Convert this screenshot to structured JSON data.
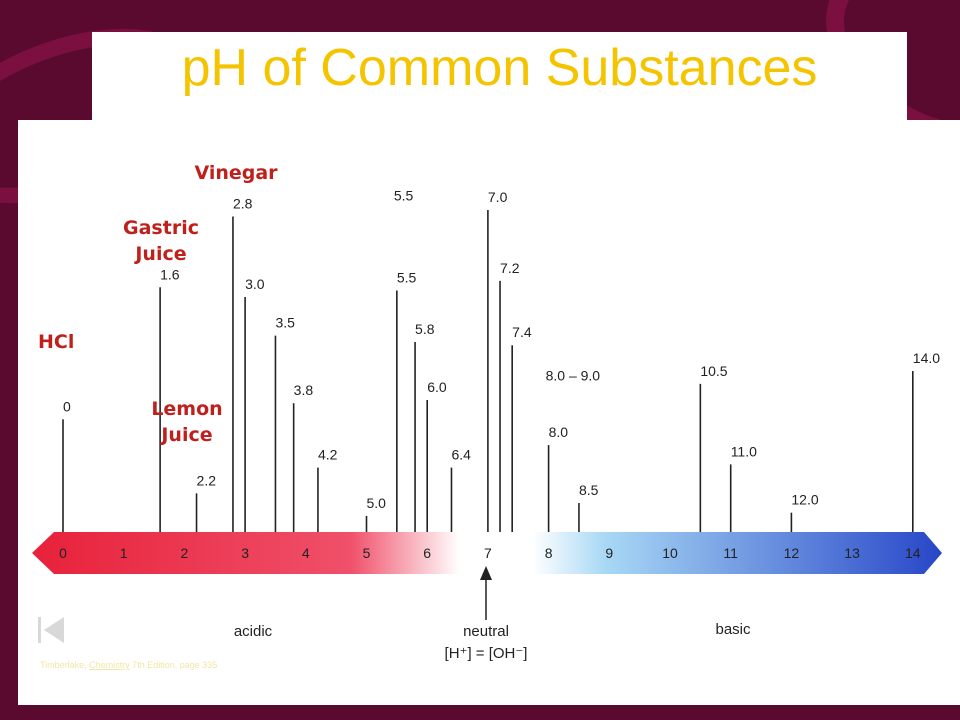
{
  "title": "pH of Common Substances",
  "colors": {
    "title": "#f5c400",
    "callout": "#c0201c",
    "background": "#5a0a2e"
  },
  "callouts": {
    "hcl": "HCl",
    "gastric": "Gastric\nJuice",
    "vinegar": "Vinegar",
    "lemon": "Lemon\nJuice"
  },
  "scale": {
    "ticks": [
      "0",
      "1",
      "2",
      "3",
      "4",
      "5",
      "6",
      "7",
      "8",
      "9",
      "10",
      "11",
      "12",
      "13",
      "14"
    ],
    "acidic": "acidic",
    "neutral": "neutral",
    "neutral_eq": "[H⁺] = [OH⁻]",
    "basic": "basic"
  },
  "markers": [
    {
      "ph": 0,
      "label": "0",
      "level": 0.35
    },
    {
      "ph": 1.6,
      "label": "1.6",
      "level": 0.76
    },
    {
      "ph": 2.2,
      "label": "2.2",
      "level": 0.12
    },
    {
      "ph": 2.8,
      "label": "2.8",
      "level": 0.98
    },
    {
      "ph": 3.0,
      "label": "3.0",
      "level": 0.73
    },
    {
      "ph": 3.5,
      "label": "3.5",
      "level": 0.61
    },
    {
      "ph": 3.8,
      "label": "3.8",
      "level": 0.4
    },
    {
      "ph": 4.2,
      "label": "4.2",
      "level": 0.2
    },
    {
      "ph": 5.0,
      "label": "5.0",
      "level": 0.05
    },
    {
      "ph": 5.5,
      "label": "5.5",
      "level": 0.75
    },
    {
      "ph": 5.8,
      "label": "5.8",
      "level": 0.59
    },
    {
      "ph": 6.0,
      "label": "6.0",
      "level": 0.41
    },
    {
      "ph": 6.4,
      "label": "6.4",
      "level": 0.2
    },
    {
      "ph": 7.0,
      "label": "7.0",
      "level": 1.0
    },
    {
      "ph": 7.2,
      "label": "7.2",
      "level": 0.78
    },
    {
      "ph": 7.4,
      "label": "7.4",
      "level": 0.58
    },
    {
      "ph": 8.0,
      "label": "8.0",
      "level": 0.27
    },
    {
      "ph": 8.5,
      "label": "8.5",
      "level": 0.09
    },
    {
      "ph": 10.5,
      "label": "10.5",
      "level": 0.46
    },
    {
      "ph": 11.0,
      "label": "11.0",
      "level": 0.21
    },
    {
      "ph": 12.0,
      "label": "12.0",
      "level": 0.06
    },
    {
      "ph": 14.0,
      "label": "14.0",
      "level": 0.5
    }
  ],
  "floating_labels": [
    {
      "ph": 5.5,
      "label": "5.5",
      "level": 1.03
    },
    {
      "ph": 8.0,
      "label": "8.0 – 9.0",
      "level": 0.47
    }
  ],
  "credit": {
    "prefix": "Timberlake, ",
    "link": "Chemistry",
    " suffix": "",
    "suffix": " 7th Edition, page 335"
  }
}
